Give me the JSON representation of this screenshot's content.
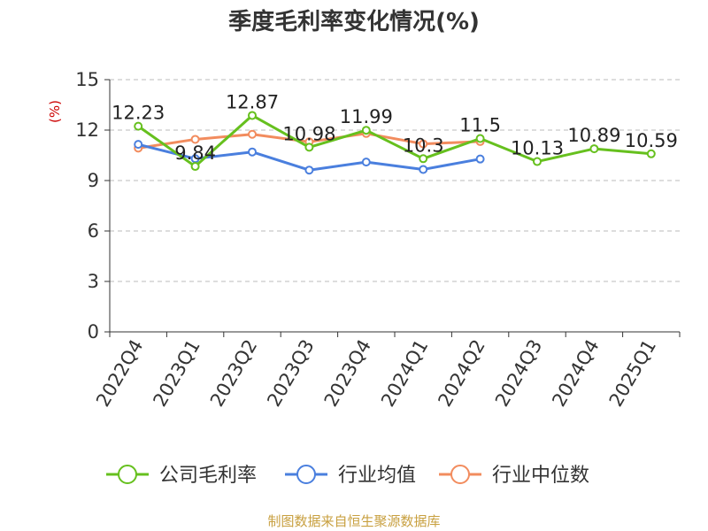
{
  "chart_data": {
    "type": "line",
    "title": "季度毛利率变化情况(%)",
    "ylabel": "(%)",
    "ylim": [
      0,
      15
    ],
    "yticks": [
      "0",
      "3",
      "6",
      "9",
      "12",
      "15"
    ],
    "grid": "horizontal-dashed",
    "legend_position": "bottom",
    "categories": [
      "2022Q4",
      "2023Q1",
      "2023Q2",
      "2023Q3",
      "2023Q4",
      "2024Q1",
      "2024Q2",
      "2024Q3",
      "2024Q4",
      "2025Q1"
    ],
    "series": [
      {
        "name": "公司毛利率",
        "color": "#66c01e",
        "values": [
          12.23,
          9.84,
          12.87,
          10.98,
          11.99,
          10.3,
          11.5,
          10.13,
          10.89,
          10.59
        ],
        "labels": [
          "12.23",
          "9.84",
          "12.87",
          "10.98",
          "11.99",
          "10.3",
          "11.5",
          "10.13",
          "10.89",
          "10.59"
        ]
      },
      {
        "name": "行业均值",
        "color": "#4a7fde",
        "values": [
          11.15,
          10.3,
          10.7,
          9.62,
          10.1,
          9.66,
          10.28,
          null,
          null,
          null
        ]
      },
      {
        "name": "行业中位数",
        "color": "#f28c5e",
        "values": [
          10.93,
          11.45,
          11.75,
          11.3,
          11.8,
          11.18,
          11.32,
          null,
          null,
          null
        ]
      }
    ]
  },
  "colors": {
    "title": "#333333",
    "unit": "#cc0000",
    "axis": "#333333",
    "grid": "#bbbbbb",
    "source": "#c8a040"
  },
  "source": "制图数据来自恒生聚源数据库"
}
